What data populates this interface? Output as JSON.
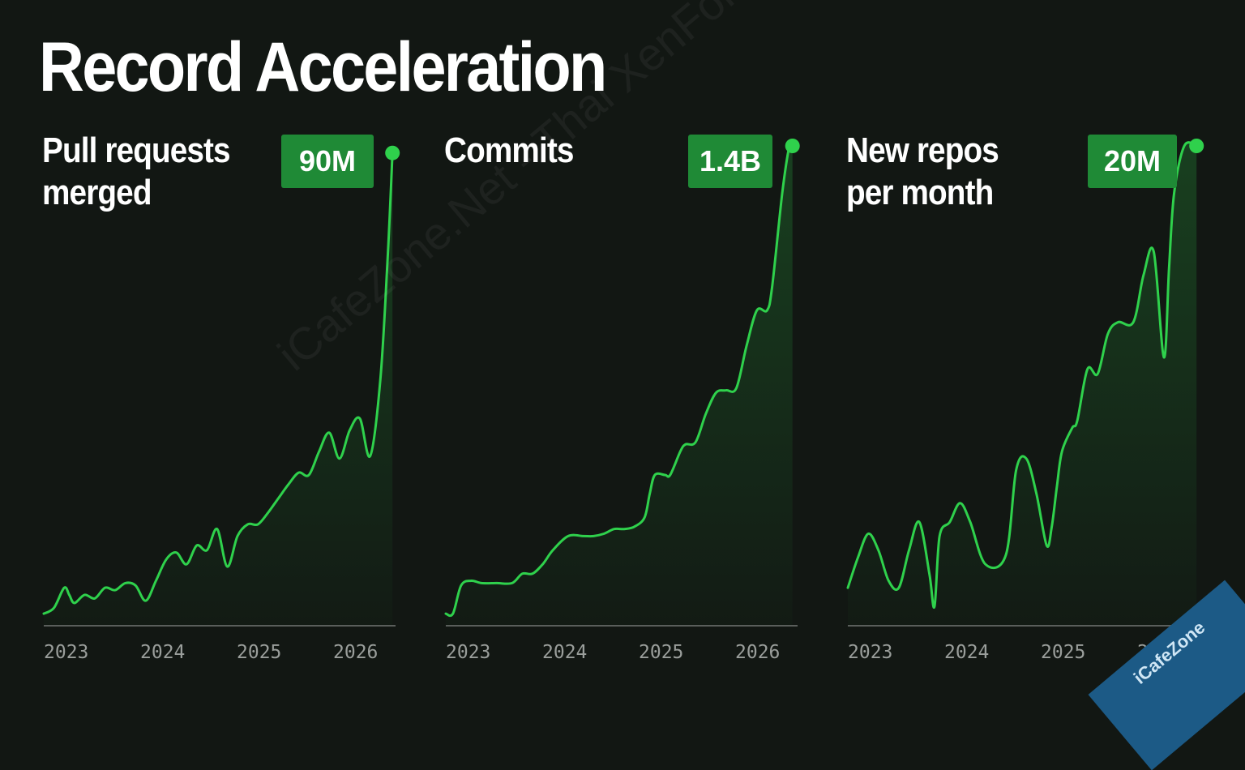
{
  "page": {
    "title": "Record Acceleration"
  },
  "colors": {
    "background": "#121713",
    "line": "#2fd14c",
    "badge": "#1f8a36",
    "axis": "#5a5e5b",
    "tick_text": "#9a9e9b"
  },
  "watermark": {
    "text": "iCafeZone.Net - Thai XenForo Community",
    "logo_text": "iCafeZone"
  },
  "chart_data": [
    {
      "type": "line",
      "title": "Pull requests\nmerged",
      "highlight_value": "90M",
      "x_ticks": [
        "2023",
        "2024",
        "2025",
        "2026"
      ],
      "x": [
        2022.75,
        2022.85,
        2022.95,
        2023.0,
        2023.05,
        2023.15,
        2023.25,
        2023.35,
        2023.45,
        2023.55,
        2023.65,
        2023.75,
        2023.85,
        2023.95,
        2024.05,
        2024.15,
        2024.25,
        2024.35,
        2024.45,
        2024.55,
        2024.65,
        2024.75,
        2024.85,
        2024.95,
        2025.05,
        2025.15,
        2025.25,
        2025.35,
        2025.45,
        2025.55,
        2025.65,
        2025.75,
        2025.85,
        2025.95,
        2026.05,
        2026.12,
        2026.17
      ],
      "y": [
        1.0,
        3.5,
        12,
        9,
        5.5,
        9,
        7.5,
        12,
        11,
        14,
        13,
        6.5,
        15,
        24,
        27,
        22,
        30,
        28,
        37,
        21,
        34,
        39,
        39,
        44,
        50,
        56,
        61,
        60,
        70,
        78,
        67,
        79,
        84,
        68,
        100,
        150,
        197
      ],
      "ylim": [
        0,
        200
      ]
    },
    {
      "type": "line",
      "title": "Commits",
      "highlight_value": "1.4B",
      "x_ticks": [
        "2023",
        "2024",
        "2025",
        "2026"
      ],
      "x": [
        2022.75,
        2022.82,
        2022.9,
        2023.0,
        2023.1,
        2023.25,
        2023.4,
        2023.5,
        2023.6,
        2023.7,
        2023.8,
        2023.95,
        2024.1,
        2024.2,
        2024.3,
        2024.4,
        2024.5,
        2024.6,
        2024.7,
        2024.75,
        2024.8,
        2024.9,
        2024.95,
        2025.05,
        2025.1,
        2025.2,
        2025.3,
        2025.4,
        2025.5,
        2025.6,
        2025.7,
        2025.8,
        2025.9,
        2025.95,
        2026.05,
        2026.12,
        2026.15
      ],
      "y": [
        1.0,
        1.0,
        13,
        15,
        14,
        14,
        14,
        18,
        18,
        22,
        28,
        34,
        34,
        34,
        35,
        37,
        37,
        38,
        42,
        52,
        60,
        60,
        60,
        70,
        73,
        74,
        86,
        95,
        96,
        97,
        115,
        130,
        130,
        140,
        180,
        200,
        200
      ],
      "ylim": [
        0,
        200
      ]
    },
    {
      "type": "line",
      "title": "New repos\nper month",
      "highlight_value": "20M",
      "x_ticks": [
        "2023",
        "2024",
        "2025",
        "2026"
      ],
      "x": [
        2022.75,
        2022.85,
        2022.95,
        2023.05,
        2023.15,
        2023.25,
        2023.35,
        2023.45,
        2023.55,
        2023.6,
        2023.65,
        2023.75,
        2023.85,
        2023.95,
        2024.1,
        2024.3,
        2024.4,
        2024.5,
        2024.6,
        2024.7,
        2024.75,
        2024.8,
        2024.85,
        2024.95,
        2025.0,
        2025.1,
        2025.2,
        2025.3,
        2025.4,
        2025.55,
        2025.65,
        2025.75,
        2025.85,
        2025.9,
        2025.95,
        2026.05,
        2026.17
      ],
      "y": [
        12,
        25,
        35,
        28,
        15,
        12,
        28,
        40,
        18,
        4,
        34,
        40,
        48,
        40,
        22,
        26,
        62,
        67,
        52,
        30,
        38,
        55,
        70,
        80,
        83,
        105,
        103,
        120,
        125,
        125,
        145,
        155,
        110,
        148,
        180,
        200,
        200
      ],
      "ylim": [
        0,
        200
      ]
    }
  ]
}
